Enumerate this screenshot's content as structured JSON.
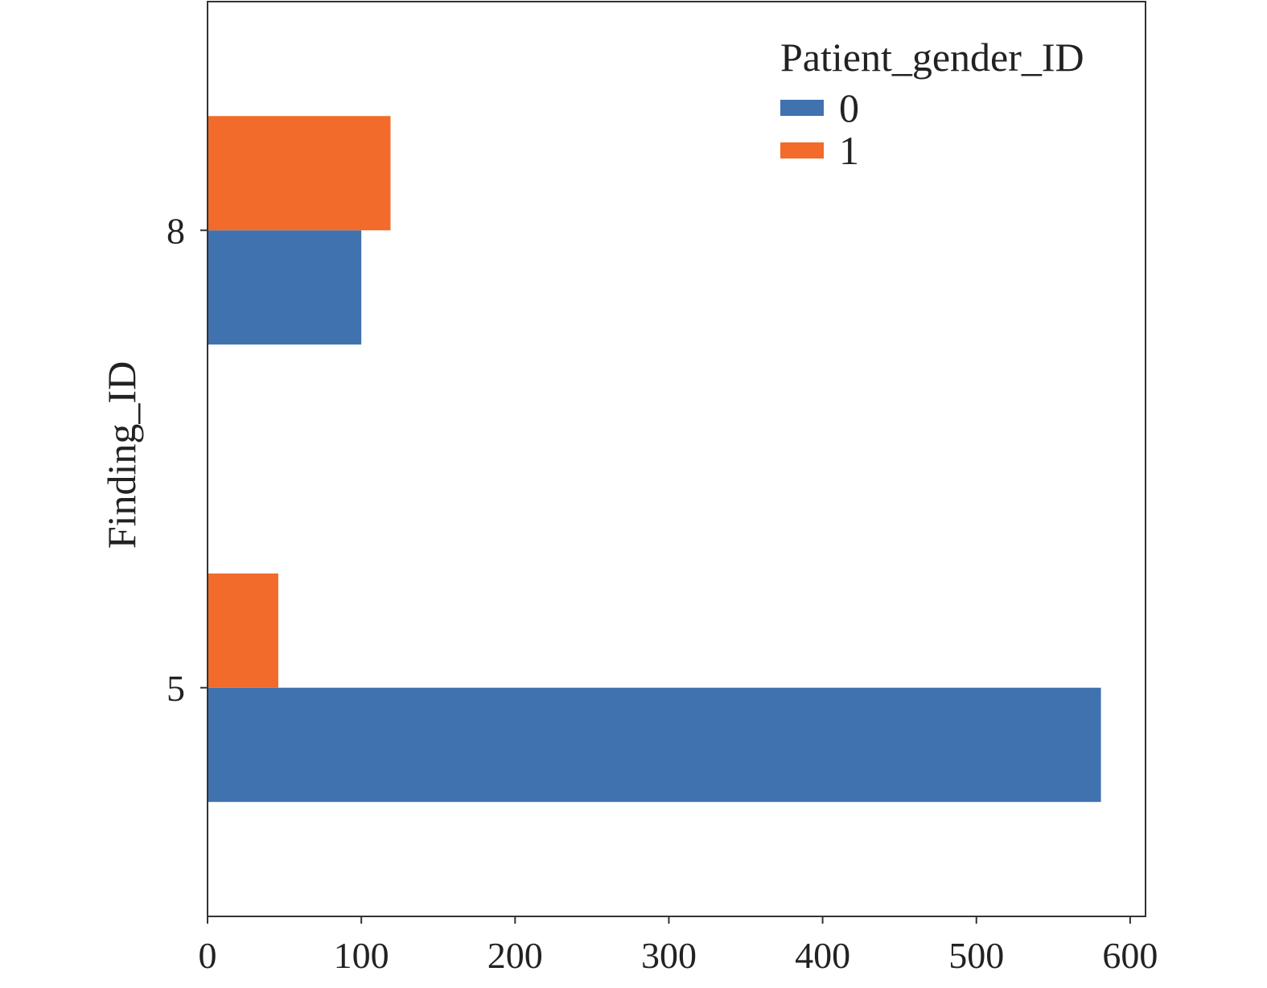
{
  "chart_data": {
    "type": "bar",
    "orientation": "horizontal",
    "categories": [
      "5",
      "8"
    ],
    "series": [
      {
        "name": "0",
        "values": [
          581,
          100
        ],
        "color": "#3f72ae"
      },
      {
        "name": "1",
        "values": [
          46,
          119
        ],
        "color": "#f26b2a"
      }
    ],
    "xlabel": "",
    "ylabel": "Finding_ID",
    "xlim": [
      0,
      610
    ],
    "xticks": [
      0,
      100,
      200,
      300,
      400,
      500,
      600
    ],
    "grid": false,
    "legend": {
      "title": "Patient_gender_ID",
      "position": "top-right"
    }
  }
}
